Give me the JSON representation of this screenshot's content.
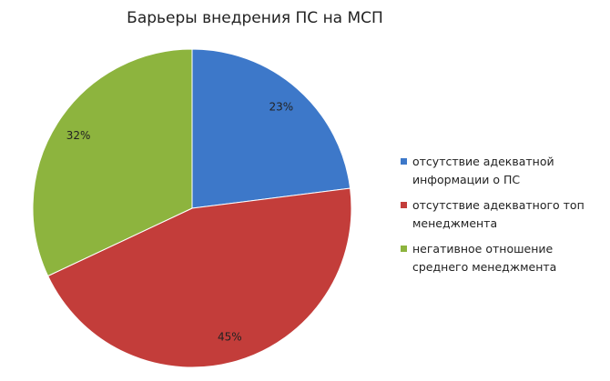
{
  "chart_data": {
    "type": "pie",
    "title": "Барьеры внедрения ПС на МСП",
    "categories": [
      "отсутствие адекватной информации о ПС",
      "отсутствие адекватного топ менеджмента",
      "негативное отношение среднего менеджмента"
    ],
    "values": [
      23,
      45,
      32
    ],
    "value_labels": [
      "23%",
      "45%",
      "32%"
    ],
    "colors": [
      "#3d78c9",
      "#c33d3a",
      "#8db43e"
    ],
    "legend": "right"
  }
}
